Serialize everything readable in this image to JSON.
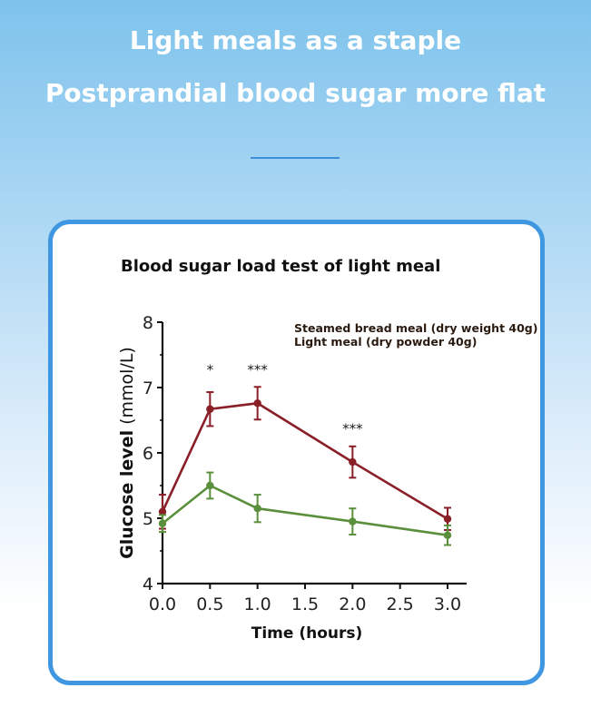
{
  "header": {
    "line1": "Light meals as a staple",
    "line2": "Postprandial blood sugar more flat"
  },
  "colors": {
    "background_top": "#7ec3ec",
    "card_border": "#3e97e0",
    "divider": "#3d8fd9",
    "series_bread": "#8b1f28",
    "series_light": "#5a8f3c"
  },
  "chart_data": {
    "type": "line",
    "title": "Blood sugar load test of light meal",
    "xlabel": "Time (hours)",
    "ylabel_bold": "Glucose level",
    "ylabel_unit": "(mmol/L)",
    "xlim": [
      0,
      3.2
    ],
    "ylim": [
      4,
      8
    ],
    "xticks": [
      "0.0",
      "0.5",
      "1.0",
      "1.5",
      "2.0",
      "2.5",
      "3.0"
    ],
    "yticks": [
      "4",
      "5",
      "6",
      "7",
      "8"
    ],
    "grid": false,
    "legend_position": "top-right",
    "series": [
      {
        "name": "Steamed bread meal (dry weight 40g)",
        "color": "#8b1f28",
        "x": [
          0,
          0.5,
          1.0,
          2.0,
          3.0
        ],
        "y": [
          5.1,
          6.67,
          6.76,
          5.86,
          4.99
        ],
        "err": [
          0.26,
          0.26,
          0.25,
          0.24,
          0.17
        ]
      },
      {
        "name": "Light meal (dry powder 40g)",
        "color": "#5a8f3c",
        "x": [
          0,
          0.5,
          1.0,
          2.0,
          3.0
        ],
        "y": [
          4.92,
          5.5,
          5.15,
          4.95,
          4.74
        ],
        "err": [
          0.13,
          0.2,
          0.21,
          0.2,
          0.15
        ]
      }
    ],
    "annotations": [
      {
        "x": 0.5,
        "y": 7.2,
        "text": "*"
      },
      {
        "x": 1.0,
        "y": 7.2,
        "text": "***"
      },
      {
        "x": 2.0,
        "y": 6.3,
        "text": "***"
      }
    ]
  }
}
